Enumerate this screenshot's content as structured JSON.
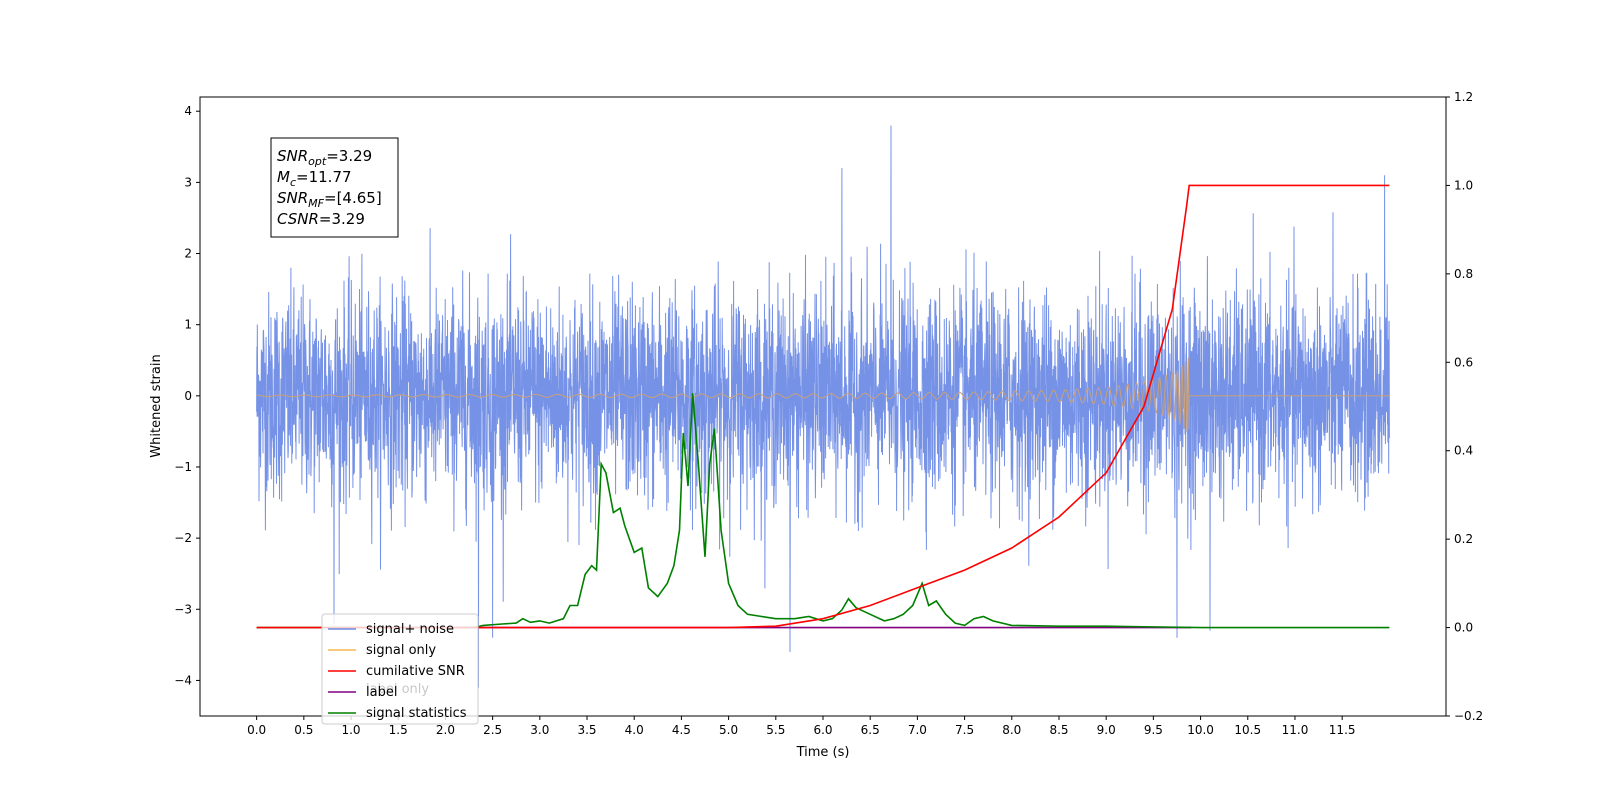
{
  "chart_data": {
    "type": "line",
    "xlabel": "Time (s)",
    "ylabel": "Whitened strain",
    "xlim": [
      -0.6,
      12.6
    ],
    "ylim": [
      -4.5,
      4.2
    ],
    "y2lim": [
      -0.2,
      1.2
    ],
    "x_ticks": [
      "0.0",
      "0.5",
      "1.0",
      "1.5",
      "2.0",
      "2.5",
      "3.0",
      "3.5",
      "4.0",
      "4.5",
      "5.0",
      "5.5",
      "6.0",
      "6.5",
      "7.0",
      "7.5",
      "8.0",
      "8.5",
      "9.0",
      "9.5",
      "10.0",
      "10.5",
      "11.0",
      "11.5"
    ],
    "y_ticks": [
      "−4",
      "−3",
      "−2",
      "−1",
      "0",
      "1",
      "2",
      "3",
      "4"
    ],
    "y2_ticks": [
      "−0.2",
      "0.0",
      "0.2",
      "0.4",
      "0.6",
      "0.8",
      "1.0",
      "1.2"
    ],
    "textbox": {
      "lines": [
        {
          "name": "SNR",
          "sub": "opt",
          "value": "=3.29"
        },
        {
          "name": "M",
          "sub": "c",
          "value": "=11.77"
        },
        {
          "name": "SNR",
          "sub": "MF",
          "value": "=[4.65]"
        },
        {
          "name": "CSNR",
          "sub": "",
          "value": "=3.29"
        }
      ]
    },
    "legend": {
      "position": "lower-left",
      "entries": [
        {
          "label": "signal+ noise",
          "color": "#6f8ce6"
        },
        {
          "label": "signal only",
          "color": "#f5b84f"
        },
        {
          "label": "cumilative SNR",
          "color": "#ff0000"
        },
        {
          "label": "label",
          "color": "#800080"
        },
        {
          "label": "signal statistics",
          "color": "#008000"
        }
      ],
      "overlapped_text": [
        "label only"
      ]
    },
    "series": [
      {
        "name": "signal+ noise",
        "axis": "left",
        "color": "#6f8ce6",
        "x_range": [
          0,
          12.0
        ],
        "typical_amplitude": 1.5,
        "peaks": [
          {
            "x": 0.82,
            "y": -3.2
          },
          {
            "x": 2.35,
            "y": -4.1
          },
          {
            "x": 2.5,
            "y": -3.4
          },
          {
            "x": 5.65,
            "y": -3.6
          },
          {
            "x": 6.72,
            "y": 3.8
          },
          {
            "x": 6.2,
            "y": 3.2
          },
          {
            "x": 9.75,
            "y": -3.4
          },
          {
            "x": 10.1,
            "y": -3.3
          },
          {
            "x": 11.95,
            "y": 3.1
          }
        ]
      },
      {
        "name": "signal only",
        "axis": "left",
        "color": "#c8a07a",
        "chirp_end": 9.88,
        "points": [
          [
            0,
            0.01
          ],
          [
            6.0,
            0.03
          ],
          [
            7.5,
            0.05
          ],
          [
            8.5,
            0.08
          ],
          [
            9.0,
            0.12
          ],
          [
            9.5,
            0.22
          ],
          [
            9.75,
            0.35
          ],
          [
            9.88,
            0.55
          ]
        ]
      },
      {
        "name": "cumilative SNR",
        "axis": "right",
        "color": "#ff0000",
        "points": [
          [
            0,
            0.0
          ],
          [
            5.0,
            0.0
          ],
          [
            5.5,
            0.003
          ],
          [
            6.0,
            0.02
          ],
          [
            6.5,
            0.05
          ],
          [
            7.0,
            0.09
          ],
          [
            7.5,
            0.13
          ],
          [
            8.0,
            0.18
          ],
          [
            8.5,
            0.25
          ],
          [
            9.0,
            0.35
          ],
          [
            9.4,
            0.5
          ],
          [
            9.7,
            0.72
          ],
          [
            9.85,
            0.95
          ],
          [
            9.88,
            1.0
          ],
          [
            12.0,
            1.0
          ]
        ]
      },
      {
        "name": "label",
        "axis": "right",
        "color": "#800080",
        "points": [
          [
            2.1,
            0.0
          ],
          [
            9.9,
            0.0
          ]
        ]
      },
      {
        "name": "signal statistics",
        "axis": "right",
        "color": "#008000",
        "points": [
          [
            0,
            0.0
          ],
          [
            2.3,
            0.0
          ],
          [
            2.4,
            0.005
          ],
          [
            2.6,
            0.008
          ],
          [
            2.75,
            0.01
          ],
          [
            2.82,
            0.02
          ],
          [
            2.9,
            0.012
          ],
          [
            3.0,
            0.015
          ],
          [
            3.1,
            0.01
          ],
          [
            3.25,
            0.02
          ],
          [
            3.32,
            0.05
          ],
          [
            3.4,
            0.05
          ],
          [
            3.48,
            0.12
          ],
          [
            3.55,
            0.14
          ],
          [
            3.6,
            0.13
          ],
          [
            3.65,
            0.37
          ],
          [
            3.7,
            0.35
          ],
          [
            3.78,
            0.26
          ],
          [
            3.85,
            0.27
          ],
          [
            3.9,
            0.23
          ],
          [
            4.0,
            0.17
          ],
          [
            4.08,
            0.18
          ],
          [
            4.15,
            0.09
          ],
          [
            4.25,
            0.07
          ],
          [
            4.35,
            0.1
          ],
          [
            4.42,
            0.14
          ],
          [
            4.48,
            0.22
          ],
          [
            4.52,
            0.44
          ],
          [
            4.57,
            0.32
          ],
          [
            4.62,
            0.53
          ],
          [
            4.68,
            0.37
          ],
          [
            4.75,
            0.16
          ],
          [
            4.8,
            0.37
          ],
          [
            4.85,
            0.45
          ],
          [
            4.92,
            0.22
          ],
          [
            5.0,
            0.1
          ],
          [
            5.1,
            0.05
          ],
          [
            5.2,
            0.03
          ],
          [
            5.35,
            0.025
          ],
          [
            5.5,
            0.02
          ],
          [
            5.7,
            0.02
          ],
          [
            5.85,
            0.025
          ],
          [
            6.0,
            0.015
          ],
          [
            6.1,
            0.02
          ],
          [
            6.2,
            0.04
          ],
          [
            6.27,
            0.065
          ],
          [
            6.35,
            0.045
          ],
          [
            6.5,
            0.03
          ],
          [
            6.65,
            0.015
          ],
          [
            6.75,
            0.02
          ],
          [
            6.85,
            0.03
          ],
          [
            6.95,
            0.05
          ],
          [
            7.05,
            0.1
          ],
          [
            7.12,
            0.05
          ],
          [
            7.2,
            0.06
          ],
          [
            7.3,
            0.03
          ],
          [
            7.4,
            0.01
          ],
          [
            7.5,
            0.005
          ],
          [
            7.6,
            0.02
          ],
          [
            7.7,
            0.025
          ],
          [
            7.8,
            0.015
          ],
          [
            8.0,
            0.005
          ],
          [
            8.5,
            0.003
          ],
          [
            9.0,
            0.003
          ],
          [
            10.0,
            0.0
          ],
          [
            12.0,
            0.0
          ]
        ]
      }
    ]
  }
}
